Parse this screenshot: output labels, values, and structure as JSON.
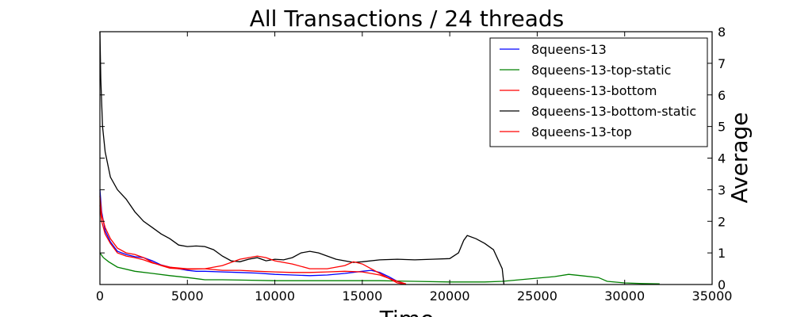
{
  "chart_data": {
    "type": "line",
    "title": "All Transactions / 24 threads",
    "xlabel": "Time",
    "ylabel": "Average",
    "xlim": [
      0,
      35000
    ],
    "ylim": [
      0,
      8
    ],
    "x_ticks": [
      0,
      5000,
      10000,
      15000,
      20000,
      25000,
      30000,
      35000
    ],
    "y_ticks": [
      0,
      1,
      2,
      3,
      4,
      5,
      6,
      7,
      8
    ],
    "y_axis_side": "right",
    "grid": false,
    "legend_position": "top-right",
    "series": [
      {
        "name": "8queens-13",
        "color": "#0000ff",
        "points": [
          [
            0,
            3.0
          ],
          [
            100,
            2.3
          ],
          [
            300,
            1.7
          ],
          [
            600,
            1.35
          ],
          [
            1000,
            1.05
          ],
          [
            1500,
            0.95
          ],
          [
            2000,
            0.88
          ],
          [
            2500,
            0.85
          ],
          [
            3000,
            0.75
          ],
          [
            3500,
            0.62
          ],
          [
            4000,
            0.55
          ],
          [
            4500,
            0.5
          ],
          [
            5000,
            0.45
          ],
          [
            5500,
            0.42
          ],
          [
            6000,
            0.42
          ],
          [
            7000,
            0.4
          ],
          [
            8000,
            0.38
          ],
          [
            9000,
            0.36
          ],
          [
            10000,
            0.32
          ],
          [
            11000,
            0.3
          ],
          [
            12000,
            0.28
          ],
          [
            13000,
            0.3
          ],
          [
            14000,
            0.35
          ],
          [
            15000,
            0.42
          ],
          [
            15500,
            0.45
          ],
          [
            16000,
            0.38
          ],
          [
            16500,
            0.25
          ],
          [
            17000,
            0.1
          ],
          [
            17500,
            0.0
          ]
        ]
      },
      {
        "name": "8queens-13-top-static",
        "color": "#008000",
        "points": [
          [
            0,
            1.0
          ],
          [
            200,
            0.85
          ],
          [
            500,
            0.72
          ],
          [
            1000,
            0.55
          ],
          [
            2000,
            0.42
          ],
          [
            3000,
            0.35
          ],
          [
            4000,
            0.28
          ],
          [
            5000,
            0.22
          ],
          [
            6000,
            0.15
          ],
          [
            7000,
            0.15
          ],
          [
            8000,
            0.14
          ],
          [
            10000,
            0.12
          ],
          [
            12000,
            0.12
          ],
          [
            14000,
            0.12
          ],
          [
            16000,
            0.12
          ],
          [
            18000,
            0.1
          ],
          [
            20000,
            0.08
          ],
          [
            22000,
            0.08
          ],
          [
            23000,
            0.1
          ],
          [
            24000,
            0.15
          ],
          [
            25000,
            0.2
          ],
          [
            26000,
            0.25
          ],
          [
            26800,
            0.32
          ],
          [
            27500,
            0.28
          ],
          [
            28500,
            0.22
          ],
          [
            29000,
            0.1
          ],
          [
            30000,
            0.05
          ],
          [
            31000,
            0.03
          ],
          [
            32000,
            0.02
          ]
        ]
      },
      {
        "name": "8queens-13-bottom",
        "color": "#ff0000",
        "points": [
          [
            0,
            2.5
          ],
          [
            100,
            2.0
          ],
          [
            300,
            1.6
          ],
          [
            600,
            1.3
          ],
          [
            1000,
            1.0
          ],
          [
            1500,
            0.9
          ],
          [
            2000,
            0.85
          ],
          [
            2500,
            0.78
          ],
          [
            3000,
            0.68
          ],
          [
            4000,
            0.55
          ],
          [
            5000,
            0.5
          ],
          [
            6000,
            0.5
          ],
          [
            7000,
            0.45
          ],
          [
            8000,
            0.45
          ],
          [
            9000,
            0.42
          ],
          [
            10000,
            0.4
          ],
          [
            11000,
            0.38
          ],
          [
            12000,
            0.38
          ],
          [
            13000,
            0.4
          ],
          [
            14000,
            0.42
          ],
          [
            15000,
            0.4
          ],
          [
            16000,
            0.3
          ],
          [
            16500,
            0.2
          ],
          [
            17000,
            0.1
          ],
          [
            17500,
            0.02
          ]
        ]
      },
      {
        "name": "8queens-13-bottom-static",
        "color": "#000000",
        "points": [
          [
            0,
            8.0
          ],
          [
            50,
            6.5
          ],
          [
            150,
            5.0
          ],
          [
            300,
            4.2
          ],
          [
            600,
            3.4
          ],
          [
            1000,
            3.0
          ],
          [
            1500,
            2.7
          ],
          [
            2000,
            2.3
          ],
          [
            2500,
            2.0
          ],
          [
            3000,
            1.8
          ],
          [
            3500,
            1.6
          ],
          [
            4000,
            1.45
          ],
          [
            4500,
            1.25
          ],
          [
            5000,
            1.2
          ],
          [
            5500,
            1.22
          ],
          [
            6000,
            1.2
          ],
          [
            6500,
            1.1
          ],
          [
            7000,
            0.9
          ],
          [
            7500,
            0.75
          ],
          [
            8000,
            0.72
          ],
          [
            8500,
            0.8
          ],
          [
            9000,
            0.85
          ],
          [
            9500,
            0.75
          ],
          [
            10000,
            0.8
          ],
          [
            10500,
            0.78
          ],
          [
            11000,
            0.85
          ],
          [
            11500,
            1.0
          ],
          [
            12000,
            1.05
          ],
          [
            12500,
            1.0
          ],
          [
            13000,
            0.9
          ],
          [
            13500,
            0.8
          ],
          [
            14000,
            0.75
          ],
          [
            14500,
            0.7
          ],
          [
            15000,
            0.72
          ],
          [
            16000,
            0.78
          ],
          [
            17000,
            0.8
          ],
          [
            18000,
            0.78
          ],
          [
            19000,
            0.8
          ],
          [
            20000,
            0.82
          ],
          [
            20500,
            1.0
          ],
          [
            20800,
            1.4
          ],
          [
            21000,
            1.55
          ],
          [
            21500,
            1.45
          ],
          [
            22000,
            1.3
          ],
          [
            22500,
            1.1
          ],
          [
            23000,
            0.5
          ],
          [
            23100,
            0.0
          ]
        ]
      },
      {
        "name": "8queens-13-top",
        "color": "#ff0000",
        "points": [
          [
            0,
            2.8
          ],
          [
            100,
            2.2
          ],
          [
            300,
            1.8
          ],
          [
            600,
            1.45
          ],
          [
            1000,
            1.15
          ],
          [
            1500,
            1.0
          ],
          [
            2000,
            0.95
          ],
          [
            2500,
            0.85
          ],
          [
            3000,
            0.7
          ],
          [
            3500,
            0.6
          ],
          [
            4000,
            0.52
          ],
          [
            5000,
            0.48
          ],
          [
            6000,
            0.5
          ],
          [
            7000,
            0.6
          ],
          [
            8000,
            0.8
          ],
          [
            9000,
            0.9
          ],
          [
            9500,
            0.85
          ],
          [
            10000,
            0.75
          ],
          [
            10500,
            0.7
          ],
          [
            11000,
            0.65
          ],
          [
            12000,
            0.5
          ],
          [
            13000,
            0.5
          ],
          [
            14000,
            0.6
          ],
          [
            14500,
            0.72
          ],
          [
            15000,
            0.65
          ],
          [
            15500,
            0.5
          ],
          [
            16000,
            0.35
          ],
          [
            16500,
            0.2
          ],
          [
            17000,
            0.05
          ],
          [
            17500,
            0.0
          ]
        ]
      }
    ]
  }
}
